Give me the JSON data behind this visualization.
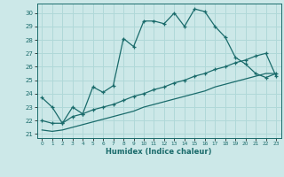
{
  "xlabel": "Humidex (Indice chaleur)",
  "bg_color": "#cce8e8",
  "grid_color": "#b0d8d8",
  "line_color": "#1a6b6b",
  "xlim": [
    -0.5,
    23.5
  ],
  "ylim": [
    20.7,
    30.7
  ],
  "xticks": [
    0,
    1,
    2,
    3,
    4,
    5,
    6,
    7,
    8,
    9,
    10,
    11,
    12,
    13,
    14,
    15,
    16,
    17,
    18,
    19,
    20,
    21,
    22,
    23
  ],
  "yticks": [
    21,
    22,
    23,
    24,
    25,
    26,
    27,
    28,
    29,
    30
  ],
  "line1_x": [
    0,
    1,
    2,
    3,
    4,
    5,
    6,
    7,
    8,
    9,
    10,
    11,
    12,
    13,
    14,
    15,
    16,
    17,
    18,
    19,
    20,
    21,
    22,
    23
  ],
  "line1_y": [
    23.7,
    23.0,
    21.8,
    23.0,
    22.5,
    24.5,
    24.1,
    24.6,
    28.1,
    27.5,
    29.4,
    29.4,
    29.2,
    30.0,
    29.0,
    30.3,
    30.1,
    29.0,
    28.2,
    26.7,
    26.2,
    25.5,
    25.2,
    25.5
  ],
  "line2_x": [
    0,
    1,
    2,
    3,
    4,
    5,
    6,
    7,
    8,
    9,
    10,
    11,
    12,
    13,
    14,
    15,
    16,
    17,
    18,
    19,
    20,
    21,
    22,
    23
  ],
  "line2_y": [
    22.0,
    21.8,
    21.8,
    22.3,
    22.5,
    22.8,
    23.0,
    23.2,
    23.5,
    23.8,
    24.0,
    24.3,
    24.5,
    24.8,
    25.0,
    25.3,
    25.5,
    25.8,
    26.0,
    26.3,
    26.5,
    26.8,
    27.0,
    25.3
  ],
  "line3_x": [
    0,
    1,
    2,
    3,
    4,
    5,
    6,
    7,
    8,
    9,
    10,
    11,
    12,
    13,
    14,
    15,
    16,
    17,
    18,
    19,
    20,
    21,
    22,
    23
  ],
  "line3_y": [
    21.3,
    21.2,
    21.3,
    21.5,
    21.7,
    21.9,
    22.1,
    22.3,
    22.5,
    22.7,
    23.0,
    23.2,
    23.4,
    23.6,
    23.8,
    24.0,
    24.2,
    24.5,
    24.7,
    24.9,
    25.1,
    25.3,
    25.5,
    25.5
  ]
}
